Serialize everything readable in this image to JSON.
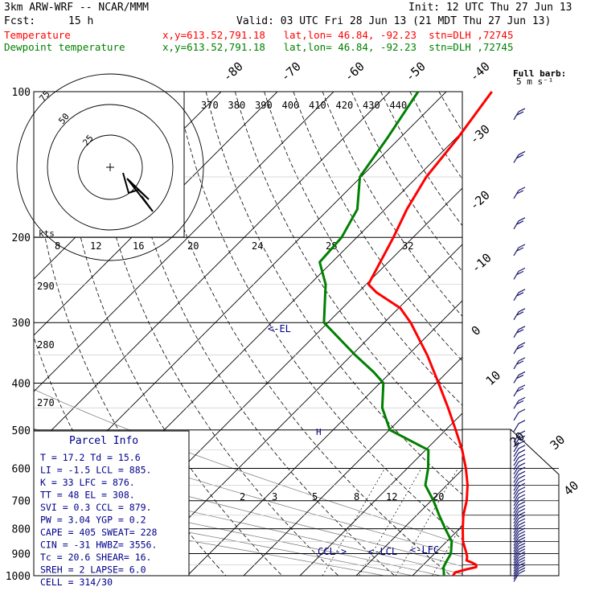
{
  "header": {
    "model": "3km ARW-WRF -- NCAR/MMM",
    "init": "Init: 12 UTC Thu 27 Jun 13",
    "fcst_label": "Fcst:",
    "fcst_value": "15 h",
    "valid": "Valid: 03 UTC Fri 28 Jun 13 (21 MDT Thu 27 Jun 13)"
  },
  "series_labels": {
    "temperature": {
      "name": "Temperature",
      "info": "x,y=613.52,791.18   lat,lon= 46.84, -92.23  stn=DLH ,72745",
      "color": "#ff0000"
    },
    "dewpoint": {
      "name": "Dewpoint temperature",
      "info": "x,y=613.52,791.18   lat,lon= 46.84, -92.23  stn=DLH ,72745",
      "color": "#008000"
    }
  },
  "wind_legend": {
    "title": "Full barb:",
    "value": "5 m s⁻¹"
  },
  "parcel_info": {
    "title": "Parcel Info",
    "rows": [
      "T  =   17.2 Td =  15.6",
      "LI =   -1.5 LCL =  885.",
      "K  =     33 LFC =  876.",
      "TT =     48 EL  =  308.",
      "SVI =   0.3 CCL =  879.",
      "PW =   3.04 YGP =   0.2",
      "CAPE =  405 SWEAT=  228",
      "CIN =   -31 HWBZ= 3556.",
      "Tc =   20.6 SHEAR=  16.",
      "SREH =    2 LAPSE=  6.0",
      "CELL = 314/30"
    ]
  },
  "hodograph": {
    "ring_labels": [
      "25",
      "50",
      "75"
    ],
    "kts_label": "kts"
  },
  "annotations": {
    "el": "<-EL",
    "ccl": "CCL->",
    "lcl": "<-LCL",
    "lfc": "<-LFC",
    "hwbz": "H"
  },
  "colors": {
    "temperature": "#ff0000",
    "dewpoint": "#008000",
    "text_blue": "#00008b",
    "wind_barbs": "#191970",
    "grid": "#000000"
  },
  "chart_data": {
    "type": "line",
    "title": "Skew-T log-P diagram",
    "y_axis": {
      "label": "",
      "unit": "hPa",
      "scale": "log",
      "range": [
        1000,
        100
      ],
      "ticks": [
        100,
        200,
        300,
        400,
        500,
        600,
        700,
        800,
        900,
        1000
      ]
    },
    "x_axis": {
      "label": "",
      "unit": "°C",
      "ticks": [
        -80,
        -70,
        -60,
        -50,
        -40,
        -30,
        -20,
        -10,
        0,
        10,
        20,
        30,
        40
      ]
    },
    "theta_labels": [
      "370",
      "380",
      "390",
      "400",
      "410",
      "420",
      "430",
      "440"
    ],
    "theta_left_labels": [
      "290",
      "280",
      "270"
    ],
    "mixing_ratio_labels": [
      "2",
      "3",
      "5",
      "8",
      "12",
      "20"
    ],
    "hodograph_speed_labels": [
      "8",
      "12",
      "16",
      "20",
      "24",
      "28",
      "32"
    ],
    "series": [
      {
        "name": "Temperature",
        "color": "#ff0000",
        "points": [
          [
            1000,
            17.2
          ],
          [
            985,
            17.0
          ],
          [
            970,
            18.5
          ],
          [
            960,
            19.8
          ],
          [
            950,
            19.4
          ],
          [
            940,
            18.3
          ],
          [
            930,
            16.9
          ],
          [
            915,
            16.4
          ],
          [
            895,
            15.4
          ],
          [
            850,
            12.9
          ],
          [
            800,
            10.6
          ],
          [
            750,
            8.3
          ],
          [
            700,
            6.3
          ],
          [
            650,
            3.7
          ],
          [
            600,
            0.4
          ],
          [
            550,
            -3.5
          ],
          [
            500,
            -8.2
          ],
          [
            450,
            -13.5
          ],
          [
            400,
            -19.6
          ],
          [
            350,
            -26.6
          ],
          [
            300,
            -35.3
          ],
          [
            280,
            -39.7
          ],
          [
            260,
            -46.7
          ],
          [
            250,
            -49.6
          ],
          [
            200,
            -53.5
          ],
          [
            175,
            -56.1
          ],
          [
            150,
            -58.4
          ],
          [
            125,
            -59.7
          ],
          [
            100,
            -61.9
          ]
        ]
      },
      {
        "name": "Dewpoint temperature",
        "color": "#008000",
        "points": [
          [
            1000,
            15.6
          ],
          [
            980,
            14.8
          ],
          [
            960,
            14.0
          ],
          [
            940,
            13.6
          ],
          [
            900,
            12.9
          ],
          [
            850,
            10.9
          ],
          [
            800,
            7.5
          ],
          [
            750,
            4.0
          ],
          [
            700,
            0.4
          ],
          [
            650,
            -3.8
          ],
          [
            600,
            -6.3
          ],
          [
            550,
            -9.5
          ],
          [
            500,
            -19.9
          ],
          [
            450,
            -25.2
          ],
          [
            400,
            -29.4
          ],
          [
            380,
            -33.0
          ],
          [
            350,
            -39.4
          ],
          [
            300,
            -50.7
          ],
          [
            250,
            -57.2
          ],
          [
            225,
            -62.2
          ],
          [
            200,
            -62.7
          ],
          [
            175,
            -64.9
          ],
          [
            150,
            -70.2
          ],
          [
            125,
            -72.2
          ],
          [
            100,
            -75.0
          ]
        ]
      }
    ],
    "annotated_levels": {
      "EL": 308,
      "LCL": 885,
      "LFC": 876,
      "CCL": 879
    },
    "grid": true,
    "legend": "top-left"
  }
}
